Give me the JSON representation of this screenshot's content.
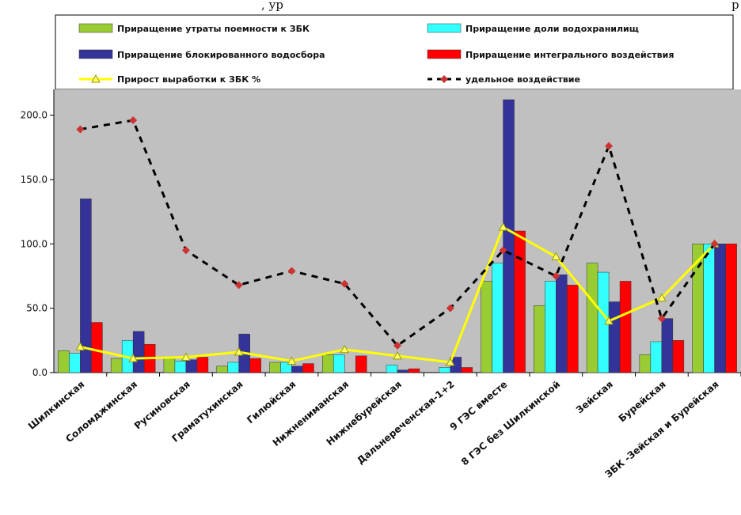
{
  "header_text": ", ур",
  "header_tail": "р",
  "chart_data": {
    "type": "bar",
    "categories": [
      "Шилкинская",
      "Соломджинская",
      "Русиновская",
      "Граматухинская",
      "Гилюйская",
      "Нижнениманская",
      "Нижнебурейская",
      "Дальнереченская-1+2",
      "9 ГЭС вместе",
      "8 ГЭС без Шилкинской",
      "Зейская",
      "Бурейская",
      "ЗБК -Зейская и Бурейская"
    ],
    "ylim": [
      0,
      220
    ],
    "yticks": [
      "0.0",
      "50.0",
      "100.0",
      "150.0",
      "200.0"
    ],
    "ytick_values": [
      0,
      50,
      100,
      150,
      200
    ],
    "grid": false,
    "legend_position": "top",
    "plot_background": "#c0c0c0",
    "series": [
      {
        "name": "Приращение утраты поемности к ЗБК",
        "kind": "bar",
        "color": "#99cc33",
        "values": [
          17,
          11,
          11,
          5,
          8,
          14,
          0,
          0,
          71,
          52,
          85,
          14,
          100
        ]
      },
      {
        "name": "Приращение доли водохранилищ",
        "kind": "bar",
        "color": "#33ffff",
        "values": [
          15,
          25,
          9,
          8,
          8,
          14,
          6,
          4,
          85,
          71,
          78,
          24,
          100
        ]
      },
      {
        "name": "Приращение блокированного водосбора",
        "kind": "bar",
        "color": "#333399",
        "values": [
          135,
          32,
          10,
          30,
          5,
          0,
          2,
          12,
          212,
          76,
          55,
          42,
          100
        ]
      },
      {
        "name": "Приращение интегрального воздействия",
        "kind": "bar",
        "color": "#ff0000",
        "values": [
          39,
          22,
          12,
          11,
          7,
          13,
          3,
          4,
          110,
          68,
          71,
          25,
          100
        ]
      },
      {
        "name": "Прирост выработки к ЗБК %",
        "kind": "line",
        "color": "#ffff00",
        "values": [
          20,
          11,
          12,
          16,
          9,
          18,
          13,
          8,
          113,
          90,
          40,
          58,
          100
        ]
      },
      {
        "name": "удельное воздействие",
        "kind": "dashed-line",
        "color": "#000000",
        "marker_color": "#cc3333",
        "values": [
          189,
          196,
          95,
          68,
          79,
          69,
          21,
          50,
          95,
          75,
          176,
          42,
          100
        ]
      }
    ]
  }
}
